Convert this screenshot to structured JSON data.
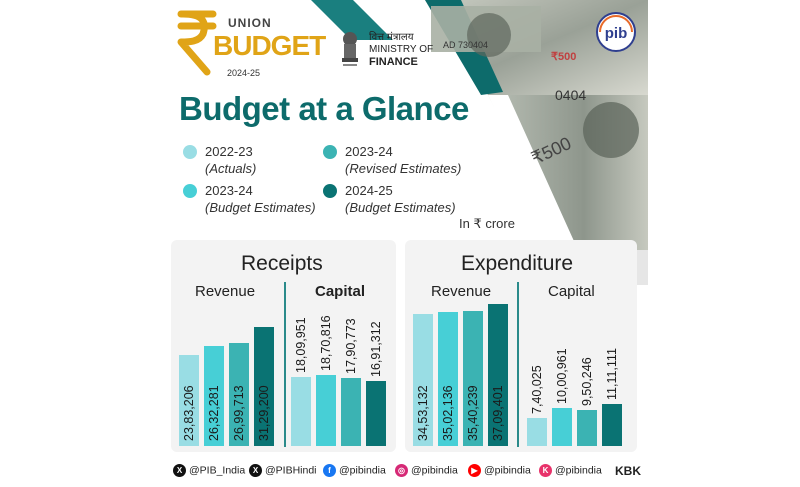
{
  "header": {
    "union_label": "UNION",
    "budget_label": "BUDGET",
    "budget_year": "2024-25",
    "ministry_hindi": "वित्त मंत्रालय",
    "ministry_line1": "MINISTRY OF",
    "ministry_line2": "FINANCE",
    "pib_label": "pib"
  },
  "colors": {
    "actuals": "#99dde4",
    "revised": "#3bb3b3",
    "budget_2324": "#47cfd6",
    "budget_2425": "#0a7373",
    "title": "#0d6b6b"
  },
  "chart_data": {
    "type": "bar",
    "title": "Budget at a Glance",
    "unit_label": "In ₹ crore",
    "legend": [
      {
        "year": "2022-23",
        "sub": "(Actuals)"
      },
      {
        "year": "2023-24",
        "sub": "(Revised Estimates)"
      },
      {
        "year": "2023-24",
        "sub": "(Budget Estimates)"
      },
      {
        "year": "2024-25",
        "sub": "(Budget Estimates)"
      }
    ],
    "series_order": [
      "2022-23 (Actuals)",
      "2023-24 (Budget Estimates)",
      "2023-24 (Revised Estimates)",
      "2024-25 (Budget Estimates)"
    ],
    "panels": [
      {
        "title": "Receipts",
        "groups": [
          {
            "name": "Revenue",
            "values": [
              2383206,
              2632281,
              2699713,
              3129200
            ],
            "labels": [
              "23,83,206",
              "26,32,281",
              "26,99,713",
              "31,29,200"
            ]
          },
          {
            "name": "Capital",
            "values": [
              1809951,
              1870816,
              1790773,
              1691312
            ],
            "labels": [
              "18,09,951",
              "18,70,816",
              "17,90,773",
              "16,91,312"
            ]
          }
        ]
      },
      {
        "title": "Expenditure",
        "groups": [
          {
            "name": "Revenue",
            "values": [
              3453132,
              3502136,
              3540239,
              3709401
            ],
            "labels": [
              "34,53,132",
              "35,02,136",
              "35,40,239",
              "37,09,401"
            ]
          },
          {
            "name": "Capital",
            "values": [
              740025,
              1000961,
              950246,
              1111111
            ],
            "labels": [
              "7,40,025",
              "10,00,961",
              "9,50,246",
              "11,11,111"
            ]
          }
        ]
      }
    ]
  },
  "footer": {
    "items": [
      {
        "icon": "x-icon",
        "text": "@PIB_India"
      },
      {
        "icon": "x-icon",
        "text": "@PIBHindi"
      },
      {
        "icon": "facebook-icon",
        "text": "@pibindia"
      },
      {
        "icon": "instagram-icon",
        "text": "@pibindia"
      },
      {
        "icon": "youtube-icon",
        "text": "@pibindia"
      },
      {
        "icon": "kooapp-icon",
        "text": "@pibindia"
      }
    ],
    "signature": "KBK"
  }
}
